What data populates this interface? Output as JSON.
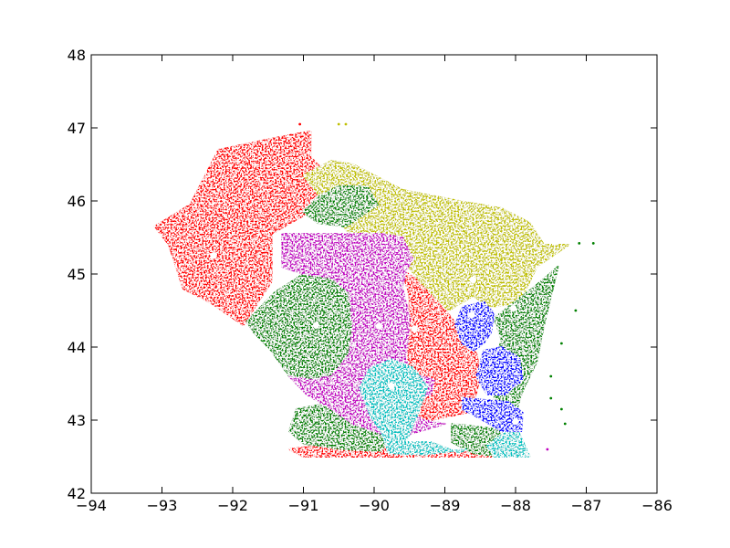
{
  "chart_data": {
    "type": "scatter",
    "title": "",
    "xlabel": "",
    "ylabel": "",
    "xlim": [
      -94,
      -86
    ],
    "ylim": [
      42,
      48
    ],
    "x_ticks": [
      -94,
      -93,
      -92,
      -91,
      -90,
      -89,
      -88,
      -87,
      -86
    ],
    "y_ticks": [
      42,
      43,
      44,
      45,
      46,
      47,
      48
    ],
    "x_tick_labels": [
      "−94",
      "−93",
      "−92",
      "−91",
      "−90",
      "−89",
      "−88",
      "−87",
      "−86"
    ],
    "y_tick_labels": [
      "42",
      "43",
      "44",
      "45",
      "46",
      "47",
      "48"
    ],
    "grid": false,
    "legend": "none",
    "cluster_colors": {
      "red": "#ff0000",
      "olive": "#bfbf00",
      "green": "#008000",
      "magenta": "#bf00bf",
      "cyan": "#00bfbf",
      "blue": "#0000ff"
    },
    "centroid_color": "#ffffff",
    "clusters": [
      {
        "color": "#ff0000",
        "region": [
          [
            -93.1,
            45.65
          ],
          [
            -92.6,
            45.95
          ],
          [
            -92.2,
            46.7
          ],
          [
            -91.2,
            46.9
          ],
          [
            -90.9,
            46.95
          ],
          [
            -90.9,
            46.6
          ],
          [
            -90.6,
            46.3
          ],
          [
            -91.0,
            45.8
          ],
          [
            -91.45,
            45.55
          ],
          [
            -91.45,
            44.9
          ],
          [
            -91.65,
            44.6
          ],
          [
            -91.85,
            44.3
          ],
          [
            -92.3,
            44.6
          ],
          [
            -92.7,
            44.8
          ],
          [
            -92.8,
            45.1
          ],
          [
            -92.9,
            45.4
          ]
        ]
      },
      {
        "color": "#ff0000",
        "region": [
          [
            -89.6,
            45.05
          ],
          [
            -89.35,
            44.9
          ],
          [
            -88.95,
            44.45
          ],
          [
            -88.75,
            44.2
          ],
          [
            -88.55,
            43.9
          ],
          [
            -88.5,
            43.6
          ],
          [
            -88.6,
            43.2
          ],
          [
            -88.7,
            43.1
          ],
          [
            -89.2,
            43.0
          ],
          [
            -89.7,
            43.0
          ],
          [
            -89.45,
            43.2
          ],
          [
            -89.4,
            43.5
          ],
          [
            -89.65,
            43.7
          ],
          [
            -89.5,
            44.3
          ],
          [
            -89.5,
            44.7
          ]
        ]
      },
      {
        "color": "#ff0000",
        "region": [
          [
            -91.2,
            42.6
          ],
          [
            -90.6,
            42.68
          ],
          [
            -90.0,
            42.66
          ],
          [
            -89.6,
            42.62
          ],
          [
            -89.1,
            42.56
          ],
          [
            -88.6,
            42.56
          ],
          [
            -88.0,
            42.5
          ],
          [
            -90.6,
            42.5
          ],
          [
            -91.0,
            42.5
          ]
        ]
      },
      {
        "color": "#bfbf00",
        "region": [
          [
            -90.6,
            46.55
          ],
          [
            -90.3,
            46.5
          ],
          [
            -89.6,
            46.15
          ],
          [
            -88.8,
            46.0
          ],
          [
            -88.2,
            45.9
          ],
          [
            -87.8,
            45.7
          ],
          [
            -87.6,
            45.4
          ],
          [
            -87.25,
            45.4
          ],
          [
            -87.7,
            45.1
          ],
          [
            -87.95,
            44.6
          ],
          [
            -88.35,
            44.55
          ],
          [
            -88.6,
            44.7
          ],
          [
            -88.95,
            44.5
          ],
          [
            -89.35,
            44.9
          ],
          [
            -89.6,
            45.2
          ],
          [
            -89.8,
            45.35
          ],
          [
            -90.1,
            45.5
          ],
          [
            -90.4,
            45.6
          ],
          [
            -90.5,
            45.8
          ],
          [
            -90.8,
            46.1
          ],
          [
            -91.0,
            46.35
          ]
        ]
      },
      {
        "color": "#008000",
        "region": [
          [
            -91.8,
            44.35
          ],
          [
            -91.4,
            44.75
          ],
          [
            -91.0,
            45.0
          ],
          [
            -90.6,
            44.95
          ],
          [
            -90.35,
            44.75
          ],
          [
            -90.3,
            44.3
          ],
          [
            -90.35,
            43.9
          ],
          [
            -90.6,
            43.6
          ],
          [
            -90.9,
            43.55
          ],
          [
            -91.2,
            43.6
          ],
          [
            -91.45,
            43.95
          ],
          [
            -91.7,
            44.2
          ]
        ]
      },
      {
        "color": "#008000",
        "region": [
          [
            -91.1,
            43.15
          ],
          [
            -90.7,
            43.22
          ],
          [
            -90.2,
            43.05
          ],
          [
            -89.8,
            42.75
          ],
          [
            -89.9,
            42.58
          ],
          [
            -90.4,
            42.6
          ],
          [
            -91.0,
            42.68
          ],
          [
            -91.2,
            42.85
          ]
        ]
      },
      {
        "color": "#008000",
        "region": [
          [
            -88.1,
            44.55
          ],
          [
            -87.7,
            44.85
          ],
          [
            -87.4,
            45.1
          ],
          [
            -87.5,
            44.7
          ],
          [
            -87.6,
            44.3
          ],
          [
            -87.7,
            43.8
          ],
          [
            -87.9,
            43.4
          ],
          [
            -88.0,
            43.1
          ],
          [
            -88.3,
            43.3
          ],
          [
            -88.3,
            43.7
          ],
          [
            -88.2,
            44.1
          ],
          [
            -88.3,
            44.4
          ]
        ]
      },
      {
        "color": "#008000",
        "region": [
          [
            -90.8,
            46.05
          ],
          [
            -90.5,
            46.2
          ],
          [
            -90.1,
            46.2
          ],
          [
            -89.95,
            45.95
          ],
          [
            -90.4,
            45.65
          ],
          [
            -90.8,
            45.7
          ],
          [
            -91.0,
            45.85
          ]
        ]
      },
      {
        "color": "#008000",
        "region": [
          [
            -88.9,
            42.95
          ],
          [
            -88.3,
            42.88
          ],
          [
            -87.95,
            42.75
          ],
          [
            -87.8,
            42.5
          ],
          [
            -88.2,
            42.5
          ],
          [
            -88.6,
            42.55
          ],
          [
            -88.9,
            42.7
          ]
        ]
      },
      {
        "color": "#bf00bf",
        "region": [
          [
            -91.3,
            45.55
          ],
          [
            -90.6,
            45.55
          ],
          [
            -89.9,
            45.55
          ],
          [
            -89.6,
            45.5
          ],
          [
            -89.45,
            45.2
          ],
          [
            -89.55,
            45.05
          ],
          [
            -89.6,
            44.8
          ],
          [
            -89.5,
            44.4
          ],
          [
            -89.55,
            43.85
          ],
          [
            -89.5,
            43.65
          ],
          [
            -89.15,
            43.55
          ],
          [
            -89.2,
            43.35
          ],
          [
            -89.7,
            43.2
          ],
          [
            -89.3,
            43.0
          ],
          [
            -89.0,
            42.95
          ],
          [
            -89.7,
            42.75
          ],
          [
            -90.3,
            42.95
          ],
          [
            -90.6,
            43.15
          ],
          [
            -90.95,
            43.35
          ],
          [
            -91.2,
            43.6
          ],
          [
            -90.9,
            43.55
          ],
          [
            -90.6,
            43.6
          ],
          [
            -90.35,
            43.9
          ],
          [
            -90.3,
            44.3
          ],
          [
            -90.35,
            44.75
          ],
          [
            -90.6,
            44.95
          ],
          [
            -91.0,
            45.0
          ],
          [
            -91.3,
            45.1
          ]
        ]
      },
      {
        "color": "#00bfbf",
        "region": [
          [
            -90.2,
            43.45
          ],
          [
            -90.05,
            43.72
          ],
          [
            -89.75,
            43.83
          ],
          [
            -89.45,
            43.72
          ],
          [
            -89.25,
            43.45
          ],
          [
            -89.4,
            43.05
          ],
          [
            -89.55,
            42.7
          ],
          [
            -89.2,
            42.7
          ],
          [
            -88.8,
            42.55
          ],
          [
            -88.7,
            42.6
          ],
          [
            -89.3,
            42.53
          ],
          [
            -89.8,
            42.55
          ],
          [
            -89.9,
            42.85
          ],
          [
            -90.05,
            43.05
          ]
        ]
      },
      {
        "color": "#00bfbf",
        "region": [
          [
            -88.05,
            42.9
          ],
          [
            -87.95,
            42.82
          ],
          [
            -87.8,
            42.5
          ],
          [
            -88.3,
            42.5
          ],
          [
            -88.4,
            42.65
          ],
          [
            -88.2,
            42.8
          ]
        ]
      },
      {
        "color": "#0000ff",
        "region": [
          [
            -88.75,
            44.55
          ],
          [
            -88.45,
            44.62
          ],
          [
            -88.3,
            44.45
          ],
          [
            -88.35,
            44.2
          ],
          [
            -88.45,
            44.05
          ],
          [
            -88.6,
            43.95
          ],
          [
            -88.75,
            44.05
          ],
          [
            -88.85,
            44.3
          ]
        ]
      },
      {
        "color": "#0000ff",
        "region": [
          [
            -88.45,
            43.95
          ],
          [
            -88.2,
            44.0
          ],
          [
            -87.95,
            43.85
          ],
          [
            -87.9,
            43.55
          ],
          [
            -88.15,
            43.35
          ],
          [
            -88.4,
            43.35
          ],
          [
            -88.55,
            43.6
          ]
        ]
      },
      {
        "color": "#0000ff",
        "region": [
          [
            -88.75,
            43.3
          ],
          [
            -88.1,
            43.25
          ],
          [
            -87.9,
            43.1
          ],
          [
            -87.92,
            42.85
          ],
          [
            -88.2,
            42.85
          ],
          [
            -88.55,
            43.05
          ],
          [
            -88.75,
            43.15
          ]
        ]
      }
    ],
    "scatter_specks": [
      {
        "x": -87.1,
        "y": 45.42,
        "color": "#008000"
      },
      {
        "x": -86.9,
        "y": 45.42,
        "color": "#008000"
      },
      {
        "x": -87.5,
        "y": 43.6,
        "color": "#008000"
      },
      {
        "x": -87.35,
        "y": 43.15,
        "color": "#008000"
      },
      {
        "x": -87.3,
        "y": 42.95,
        "color": "#008000"
      },
      {
        "x": -87.55,
        "y": 42.6,
        "color": "#bf00bf"
      },
      {
        "x": -87.15,
        "y": 44.5,
        "color": "#008000"
      },
      {
        "x": -87.35,
        "y": 44.05,
        "color": "#008000"
      },
      {
        "x": -87.5,
        "y": 43.3,
        "color": "#008000"
      },
      {
        "x": -88.2,
        "y": 45.2,
        "color": "#bfbf00"
      },
      {
        "x": -87.85,
        "y": 45.0,
        "color": "#bfbf00"
      },
      {
        "x": -91.05,
        "y": 47.05,
        "color": "#ff0000"
      },
      {
        "x": -90.5,
        "y": 47.05,
        "color": "#bfbf00"
      },
      {
        "x": -90.4,
        "y": 47.05,
        "color": "#bfbf00"
      }
    ],
    "centroids": [
      {
        "x": -92.27,
        "y": 45.25
      },
      {
        "x": -88.6,
        "y": 44.92
      },
      {
        "x": -88.03,
        "y": 44.53
      },
      {
        "x": -88.62,
        "y": 44.44
      },
      {
        "x": -90.82,
        "y": 44.3
      },
      {
        "x": -89.93,
        "y": 44.29
      },
      {
        "x": -89.43,
        "y": 44.25
      },
      {
        "x": -89.76,
        "y": 43.47
      },
      {
        "x": -88.0,
        "y": 42.98
      }
    ]
  }
}
